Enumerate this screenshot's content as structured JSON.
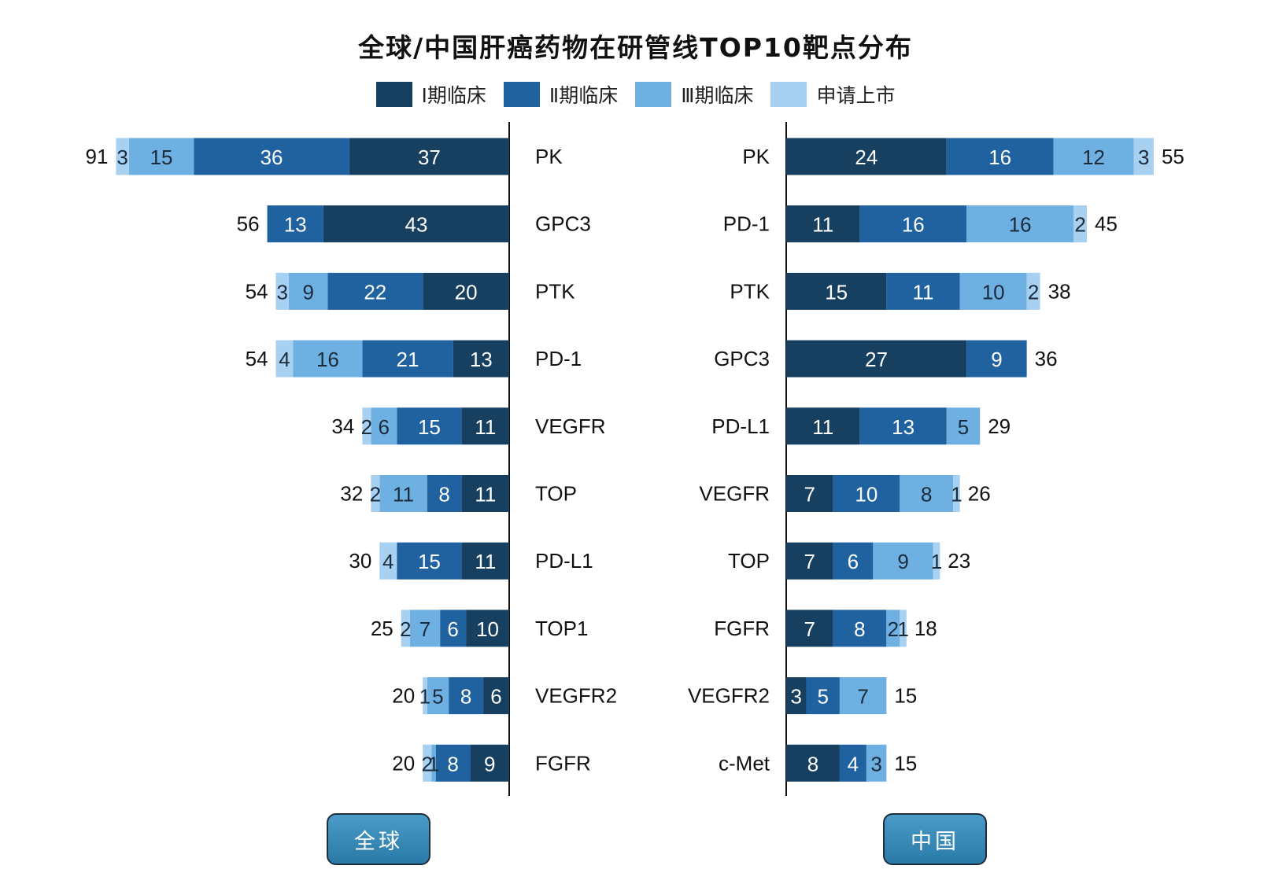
{
  "title": "全球/中国肝癌药物在研管线TOP10靶点分布",
  "legend": [
    {
      "label": "Ⅰ期临床",
      "color": "#173f5f"
    },
    {
      "label": "Ⅱ期临床",
      "color": "#2061a0"
    },
    {
      "label": "Ⅲ期临床",
      "color": "#6fb0e2"
    },
    {
      "label": "申请上市",
      "color": "#a8d0f0"
    }
  ],
  "buttons": {
    "global": "全球",
    "china": "中国"
  },
  "chart_data": [
    {
      "type": "bar",
      "orientation": "horizontal-stacked",
      "region": "全球",
      "categories": [
        "PK",
        "GPC3",
        "PTK",
        "PD-1",
        "VEGFR",
        "TOP",
        "PD-L1",
        "TOP1",
        "VEGFR2",
        "FGFR"
      ],
      "series": [
        {
          "name": "Ⅰ期临床",
          "values": [
            37,
            43,
            20,
            13,
            11,
            11,
            11,
            10,
            6,
            9
          ]
        },
        {
          "name": "Ⅱ期临床",
          "values": [
            36,
            13,
            22,
            21,
            15,
            8,
            15,
            6,
            8,
            8
          ]
        },
        {
          "name": "Ⅲ期临床",
          "values": [
            15,
            0,
            9,
            16,
            6,
            11,
            0,
            7,
            5,
            1
          ]
        },
        {
          "name": "申请上市",
          "values": [
            3,
            0,
            3,
            4,
            2,
            2,
            4,
            2,
            1,
            2
          ]
        }
      ],
      "totals": [
        91,
        56,
        54,
        54,
        34,
        32,
        30,
        25,
        20,
        20
      ]
    },
    {
      "type": "bar",
      "orientation": "horizontal-stacked",
      "region": "中国",
      "categories": [
        "PK",
        "PD-1",
        "PTK",
        "GPC3",
        "PD-L1",
        "VEGFR",
        "TOP",
        "FGFR",
        "VEGFR2",
        "c-Met"
      ],
      "series": [
        {
          "name": "Ⅰ期临床",
          "values": [
            24,
            11,
            15,
            27,
            11,
            7,
            7,
            7,
            3,
            8
          ]
        },
        {
          "name": "Ⅱ期临床",
          "values": [
            16,
            16,
            11,
            9,
            13,
            10,
            6,
            8,
            5,
            4
          ]
        },
        {
          "name": "Ⅲ期临床",
          "values": [
            12,
            16,
            10,
            0,
            5,
            8,
            9,
            2,
            7,
            3
          ]
        },
        {
          "name": "申请上市",
          "values": [
            3,
            2,
            2,
            0,
            0,
            1,
            1,
            1,
            0,
            0
          ]
        }
      ],
      "totals": [
        55,
        45,
        38,
        36,
        29,
        26,
        23,
        18,
        15,
        15
      ]
    }
  ]
}
